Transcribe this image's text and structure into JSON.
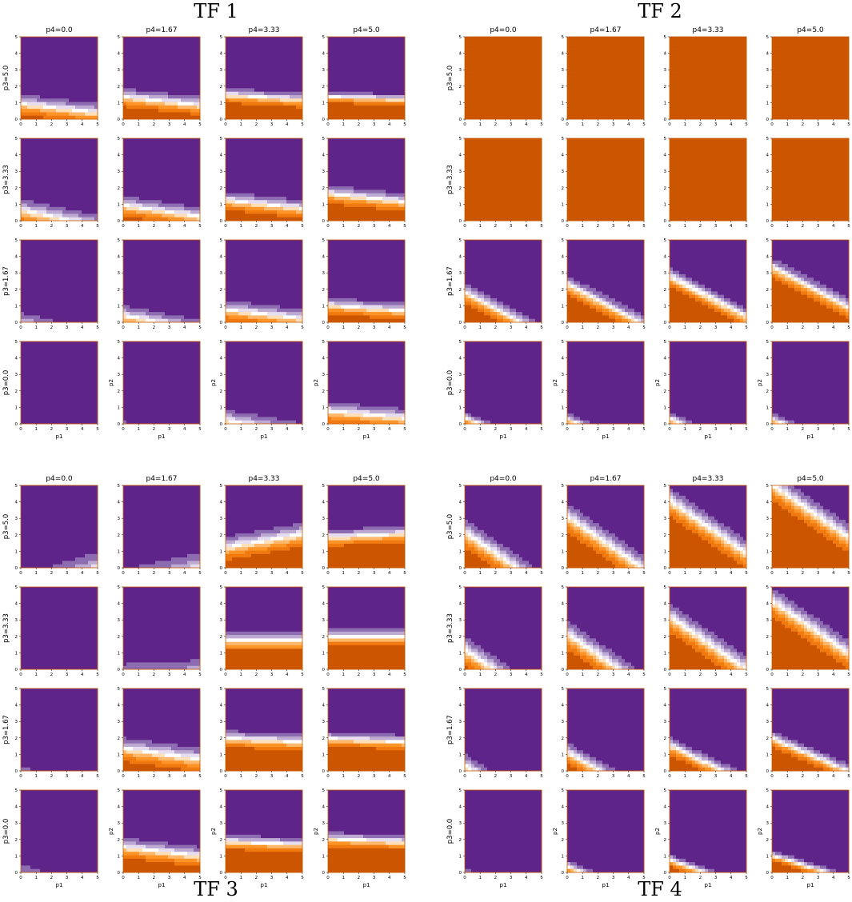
{
  "colors": {
    "purple": "#5f2489",
    "orange": "#cc5500",
    "white": "#ffffff",
    "scale_from_purple_to_orange": [
      "#5f2489",
      "#8d6cb2",
      "#bcaad2",
      "#e6def0",
      "#ffffff",
      "#fedfb8",
      "#fdb86c",
      "#fd9428",
      "#f07a10",
      "#cc5500"
    ]
  },
  "chart_data": [
    {
      "type": "heatmap",
      "title": "TF 1",
      "columns": [
        "p4=0.0",
        "p4=1.67",
        "p4=3.33",
        "p4=5.0"
      ],
      "rows": [
        "p3=5.0",
        "p3=3.33",
        "p3=1.67",
        "p3=0.0"
      ],
      "xlabel": "p1",
      "ylabel": "p2",
      "xlim": [
        0,
        5
      ],
      "ylim": [
        0,
        5
      ],
      "xticks": [
        "0",
        "1",
        "2",
        "3",
        "4",
        "5"
      ],
      "yticks": [
        "0",
        "1",
        "2",
        "3",
        "4",
        "5"
      ],
      "panels": [
        [
          {
            "c0": 1.6,
            "a": 0.2,
            "b": 0.55
          },
          {
            "c0": 2.6,
            "a": 0.2,
            "b": 0.5
          },
          {
            "c0": 3.6,
            "a": 0.15,
            "b": 0.4
          },
          {
            "c0": 4.4,
            "a": 0.1,
            "b": 0.3
          }
        ],
        [
          {
            "c0": 0.9,
            "a": 0.3,
            "b": 0.65
          },
          {
            "c0": 1.6,
            "a": 0.25,
            "b": 0.55
          },
          {
            "c0": 2.4,
            "a": 0.2,
            "b": 0.5
          },
          {
            "c0": 3.2,
            "a": 0.2,
            "b": 0.5
          }
        ],
        [
          {
            "c0": -0.3,
            "a": 0.3,
            "b": 0.7
          },
          {
            "c0": 0.6,
            "a": 0.3,
            "b": 0.6
          },
          {
            "c0": 1.3,
            "a": 0.2,
            "b": 0.55
          },
          {
            "c0": 2.2,
            "a": 0.15,
            "b": 0.45
          }
        ],
        [
          {
            "c0": -1.6,
            "a": 0.4,
            "b": 0.85
          },
          {
            "c0": -0.9,
            "a": 0.35,
            "b": 0.8
          },
          {
            "c0": 0.2,
            "a": 0.25,
            "b": 0.65
          },
          {
            "c0": 1.3,
            "a": 0.15,
            "b": 0.55
          }
        ]
      ]
    },
    {
      "type": "heatmap",
      "title": "TF 2",
      "columns": [
        "p4=0.0",
        "p4=1.67",
        "p4=3.33",
        "p4=5.0"
      ],
      "rows": [
        "p3=5.0",
        "p3=3.33",
        "p3=1.67",
        "p3=0.0"
      ],
      "xlabel": "p1",
      "ylabel": "p2",
      "xlim": [
        0,
        5
      ],
      "ylim": [
        0,
        5
      ],
      "xticks": [
        "0",
        "1",
        "2",
        "3",
        "4",
        "5"
      ],
      "yticks": [
        "0",
        "1",
        "2",
        "3",
        "4",
        "5"
      ],
      "panels": [
        [
          {
            "c0": 8.5,
            "a": -1.8,
            "b": 1.0
          },
          {
            "c0": 7.4,
            "a": -1.6,
            "b": 1.0
          },
          {
            "c0": 6.6,
            "a": -1.5,
            "b": 1.0
          },
          {
            "c0": 6.3,
            "a": -1.4,
            "b": 1.0
          }
        ],
        [
          {
            "c0": 9.5,
            "a": -0.3,
            "b": 0.0
          },
          {
            "c0": 9.5,
            "a": -0.3,
            "b": 0.0
          },
          {
            "c0": 9.5,
            "a": -0.3,
            "b": 0.0
          },
          {
            "c0": 9.5,
            "a": -0.3,
            "b": 0.0
          }
        ],
        [
          {
            "c0": 3.2,
            "a": 0.9,
            "b": 0.55
          },
          {
            "c0": 4.1,
            "a": 0.9,
            "b": 0.55
          },
          {
            "c0": 5.0,
            "a": 0.9,
            "b": 0.55
          },
          {
            "c0": 6.0,
            "a": 0.9,
            "b": 0.55
          }
        ],
        [
          {
            "c0": 0.9,
            "a": 1.0,
            "b": 0.35
          },
          {
            "c0": 0.6,
            "a": 1.0,
            "b": 0.4
          },
          {
            "c0": 0.7,
            "a": 1.0,
            "b": 0.4
          },
          {
            "c0": 0.6,
            "a": 1.0,
            "b": 0.4
          }
        ]
      ]
    },
    {
      "type": "heatmap",
      "title": "TF 3",
      "columns": [
        "p4=0.0",
        "p4=1.67",
        "p4=3.33",
        "p4=5.0"
      ],
      "rows": [
        "p3=5.0",
        "p3=3.33",
        "p3=1.67",
        "p3=0.0"
      ],
      "xlabel": "p1",
      "ylabel": "p2",
      "xlim": [
        0,
        5
      ],
      "ylim": [
        0,
        5
      ],
      "xticks": [
        "0",
        "1",
        "2",
        "3",
        "4",
        "5"
      ],
      "yticks": [
        "0",
        "1",
        "2",
        "3",
        "4",
        "5"
      ],
      "panels": [
        [
          {
            "c0": -1.5,
            "a": -0.25,
            "b": 1.1
          },
          {
            "c0": -1.2,
            "a": -0.2,
            "b": 1.0
          },
          {
            "c0": 1.8,
            "a": -0.25,
            "b": 0.65
          },
          {
            "c0": 4.0,
            "a": -0.1,
            "b": 0.45
          }
        ],
        [
          {
            "c0": -1.3,
            "a": 0.1,
            "b": 1.1
          },
          {
            "c0": -0.8,
            "a": -0.05,
            "b": 1.0
          },
          {
            "c0": 3.4,
            "a": 0.0,
            "b": 0.5
          },
          {
            "c0": 4.3,
            "a": 0.0,
            "b": 0.45
          }
        ],
        [
          {
            "c0": -0.9,
            "a": 0.15,
            "b": 1.1
          },
          {
            "c0": 2.0,
            "a": 0.2,
            "b": 0.65
          },
          {
            "c0": 4.3,
            "a": 0.1,
            "b": 0.45
          },
          {
            "c0": 4.8,
            "a": 0.1,
            "b": 0.4
          }
        ],
        [
          {
            "c0": -0.6,
            "a": 0.3,
            "b": 1.1
          },
          {
            "c0": 2.7,
            "a": 0.2,
            "b": 0.55
          },
          {
            "c0": 4.6,
            "a": 0.1,
            "b": 0.4
          },
          {
            "c0": 5.0,
            "a": 0.1,
            "b": 0.4
          }
        ]
      ]
    },
    {
      "type": "heatmap",
      "title": "TF 4",
      "columns": [
        "p4=0.0",
        "p4=1.67",
        "p4=3.33",
        "p4=5.0"
      ],
      "rows": [
        "p3=5.0",
        "p3=3.33",
        "p3=1.67",
        "p3=0.0"
      ],
      "xlabel": "p1",
      "ylabel": "p2",
      "xlim": [
        0,
        5
      ],
      "ylim": [
        0,
        5
      ],
      "xticks": [
        "0",
        "1",
        "2",
        "3",
        "4",
        "5"
      ],
      "yticks": [
        "0",
        "1",
        "2",
        "3",
        "4",
        "5"
      ],
      "panels": [
        [
          {
            "c0": 2.6,
            "a": 0.8,
            "b": 0.8
          },
          {
            "c0": 3.8,
            "a": 0.8,
            "b": 0.8
          },
          {
            "c0": 5.0,
            "a": 0.8,
            "b": 0.8
          },
          {
            "c0": 6.2,
            "a": 0.8,
            "b": 0.8
          }
        ],
        [
          {
            "c0": 1.4,
            "a": 0.8,
            "b": 0.8
          },
          {
            "c0": 2.6,
            "a": 0.8,
            "b": 0.8
          },
          {
            "c0": 3.9,
            "a": 0.8,
            "b": 0.8
          },
          {
            "c0": 5.1,
            "a": 0.8,
            "b": 0.8
          }
        ],
        [
          {
            "c0": 0.4,
            "a": 0.9,
            "b": 0.7
          },
          {
            "c0": 1.8,
            "a": 0.9,
            "b": 0.6
          },
          {
            "c0": 3.0,
            "a": 0.9,
            "b": 0.5
          },
          {
            "c0": 4.3,
            "a": 0.9,
            "b": 0.45
          }
        ],
        [
          {
            "c0": -0.5,
            "a": 1.0,
            "b": 0.5
          },
          {
            "c0": 0.8,
            "a": 1.0,
            "b": 0.4
          },
          {
            "c0": 2.1,
            "a": 1.0,
            "b": 0.35
          },
          {
            "c0": 3.4,
            "a": 1.0,
            "b": 0.3
          }
        ]
      ]
    }
  ]
}
